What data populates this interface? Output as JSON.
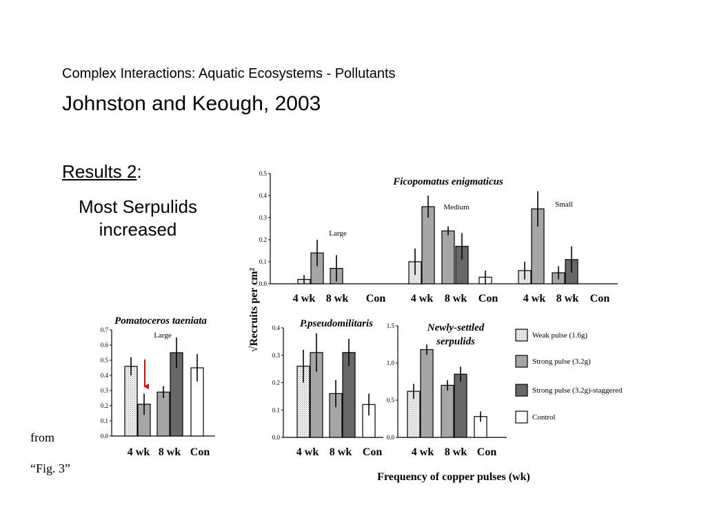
{
  "slide": {
    "subtitle": "Complex Interactions: Aquatic Ecosystems - Pollutants",
    "title": "Johnston and Keough, 2003",
    "results_label": "Results 2",
    "results_colon": ":",
    "results_body": "Most Serpulids increased",
    "source_from": "from",
    "source_fig": "“Fig. 3”"
  },
  "colors": {
    "weak": "#ebebeb",
    "strong": "#a6a6a6",
    "staggered": "#686868",
    "control": "#ffffff",
    "arrow": "#e00000"
  },
  "chart_data": {
    "type": "bar",
    "ylabel": "√Recruits per cm²",
    "xlabel": "Frequency of copper pulses (wk)",
    "legend": [
      {
        "key": "weak",
        "label": "Weak pulse (1.6g)"
      },
      {
        "key": "strong",
        "label": "Strong pulse (3.2g)"
      },
      {
        "key": "staggered",
        "label": "Strong pulse (3.2g)-staggered"
      },
      {
        "key": "control",
        "label": "Control"
      }
    ],
    "categories": [
      "4 wk",
      "8 wk",
      "Con"
    ],
    "panels": [
      {
        "id": "ficopomatus",
        "title": "Ficopomatus enigmaticus",
        "ylim": [
          0,
          0.5
        ],
        "yticks": [
          "0.0",
          "0.1",
          "0.2",
          "0.3",
          "0.4",
          "0.5"
        ],
        "groups": [
          {
            "annotation": "Large",
            "bars": [
              {
                "cat": "4 wk",
                "type": "weak",
                "value": 0.02,
                "err": 0.02
              },
              {
                "cat": "4 wk",
                "type": "strong",
                "value": 0.14,
                "err": 0.06
              },
              {
                "cat": "8 wk",
                "type": "strong",
                "value": 0.07,
                "err": 0.06
              },
              {
                "cat": "Con",
                "type": "control",
                "value": 0.0,
                "err": 0.0
              }
            ]
          },
          {
            "annotation": "Medium",
            "bars": [
              {
                "cat": "4 wk",
                "type": "weak",
                "value": 0.1,
                "err": 0.06
              },
              {
                "cat": "4 wk",
                "type": "strong",
                "value": 0.35,
                "err": 0.05
              },
              {
                "cat": "8 wk",
                "type": "strong",
                "value": 0.24,
                "err": 0.02
              },
              {
                "cat": "8 wk",
                "type": "staggered",
                "value": 0.17,
                "err": 0.06
              },
              {
                "cat": "Con",
                "type": "control",
                "value": 0.03,
                "err": 0.03
              }
            ]
          },
          {
            "annotation": "Small",
            "bars": [
              {
                "cat": "4 wk",
                "type": "weak",
                "value": 0.06,
                "err": 0.04
              },
              {
                "cat": "4 wk",
                "type": "strong",
                "value": 0.34,
                "err": 0.08
              },
              {
                "cat": "8 wk",
                "type": "strong",
                "value": 0.05,
                "err": 0.03
              },
              {
                "cat": "8 wk",
                "type": "staggered",
                "value": 0.11,
                "err": 0.06
              },
              {
                "cat": "Con",
                "type": "control",
                "value": 0.0,
                "err": 0.0
              }
            ]
          }
        ]
      },
      {
        "id": "pomatoceros",
        "title": "Pomatoceros taeniata",
        "annotation": "Large",
        "ylim": [
          0,
          0.7
        ],
        "yticks": [
          "0.0",
          "0.1",
          "0.2",
          "0.3",
          "0.4",
          "0.5",
          "0.6",
          "0.7"
        ],
        "bars": [
          {
            "cat": "4 wk",
            "type": "weak",
            "value": 0.46,
            "err": 0.06
          },
          {
            "cat": "4 wk",
            "type": "strong",
            "value": 0.21,
            "err": 0.07
          },
          {
            "cat": "8 wk",
            "type": "strong",
            "value": 0.29,
            "err": 0.04
          },
          {
            "cat": "8 wk",
            "type": "staggered",
            "value": 0.55,
            "err": 0.1
          },
          {
            "cat": "Con",
            "type": "control",
            "value": 0.45,
            "err": 0.09
          }
        ]
      },
      {
        "id": "pseudomilitaris",
        "title": "P.pseudomilitaris",
        "ylim": [
          0,
          0.4
        ],
        "yticks": [
          "0.0",
          "0.1",
          "0.2",
          "0.3",
          "0.4"
        ],
        "bars": [
          {
            "cat": "4 wk",
            "type": "weak",
            "value": 0.26,
            "err": 0.06
          },
          {
            "cat": "4 wk",
            "type": "strong",
            "value": 0.31,
            "err": 0.07
          },
          {
            "cat": "8 wk",
            "type": "strong",
            "value": 0.16,
            "err": 0.05
          },
          {
            "cat": "8 wk",
            "type": "staggered",
            "value": 0.31,
            "err": 0.05
          },
          {
            "cat": "Con",
            "type": "control",
            "value": 0.12,
            "err": 0.04
          }
        ]
      },
      {
        "id": "newly-settled",
        "title": "Newly-settled serpulids",
        "title_lines": [
          "Newly-settled",
          "serpulids"
        ],
        "ylim": [
          0,
          1.5
        ],
        "yticks": [
          "0.0",
          "0.5",
          "1.0",
          "1.5"
        ],
        "bars": [
          {
            "cat": "4 wk",
            "type": "weak",
            "value": 0.62,
            "err": 0.1
          },
          {
            "cat": "4 wk",
            "type": "strong",
            "value": 1.18,
            "err": 0.07
          },
          {
            "cat": "8 wk",
            "type": "strong",
            "value": 0.7,
            "err": 0.07
          },
          {
            "cat": "8 wk",
            "type": "staggered",
            "value": 0.85,
            "err": 0.1
          },
          {
            "cat": "Con",
            "type": "control",
            "value": 0.28,
            "err": 0.07
          }
        ]
      }
    ]
  }
}
